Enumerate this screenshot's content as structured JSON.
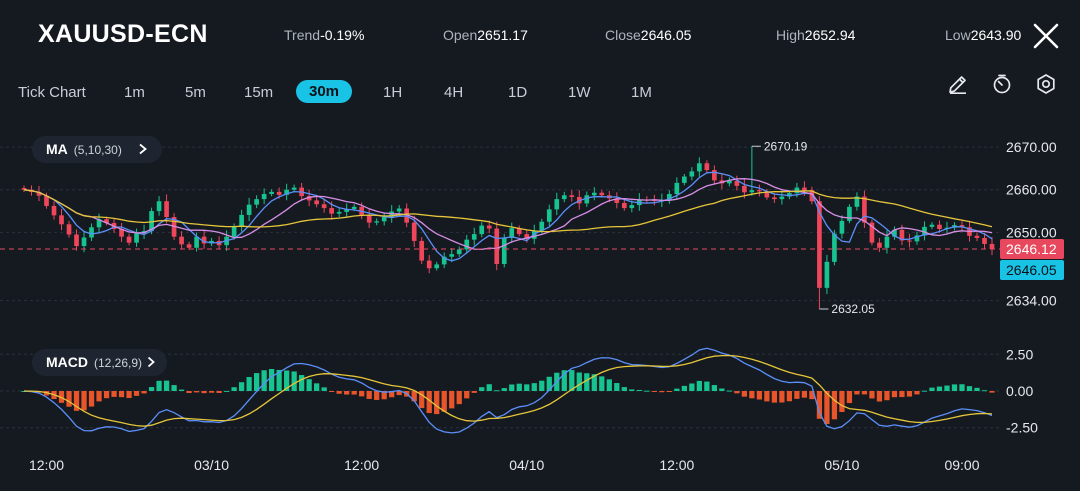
{
  "header": {
    "symbol": "XAUUSD-ECN",
    "trend_label": "Trend",
    "trend_value": "-0.19%",
    "open_label": "Open",
    "open_value": "2651.17",
    "close_label": "Close",
    "close_value": "2646.05",
    "high_label": "High",
    "high_value": "2652.94",
    "low_label": "Low",
    "low_value": "2643.90"
  },
  "timeframes": [
    "Tick Chart",
    "1m",
    "5m",
    "15m",
    "30m",
    "1H",
    "4H",
    "1D",
    "1W",
    "1M"
  ],
  "active_timeframe": "30m",
  "toolbar_icons": [
    "pencil-icon",
    "timer-icon",
    "settings-icon"
  ],
  "ma_indicator": {
    "name": "MA",
    "params": "(5,10,30)"
  },
  "macd_indicator": {
    "name": "MACD",
    "params": "(12,26,9)"
  },
  "colors": {
    "background": "#151a21",
    "bull": "#17c48f",
    "bear": "#f0465b",
    "histogram_negative": "#e8552a",
    "ma5": "#5b8ff9",
    "ma10": "#d78ee6",
    "ma30": "#e5c53a",
    "price_tag": "#e8485e",
    "close_tag": "#19c3e6"
  },
  "chart_data": {
    "type": "candlestick",
    "price_axis": {
      "ylim": [
        2629,
        2674
      ],
      "ticks": [
        "2670.00",
        "2660.00",
        "2650.00",
        "2634.00"
      ],
      "tick_values": [
        2670,
        2660,
        2650,
        2634
      ]
    },
    "markers": {
      "high_label": "2670.19",
      "high_value": 2670.19,
      "low_label": "2632.05",
      "low_value": 2632.05
    },
    "price_tags": {
      "last_label": "2646.12",
      "last_value": 2646.12,
      "close_label": "2646.05",
      "close_value": 2646.05
    },
    "time_labels": [
      "12:00",
      "03/10",
      "12:00",
      "04/10",
      "12:00",
      "05/10",
      "09:00"
    ],
    "time_label_index": [
      3,
      25,
      45,
      67,
      87,
      109,
      125
    ],
    "closes": [
      2660.0,
      2659.5,
      2658.6,
      2656.2,
      2654.0,
      2651.9,
      2649.5,
      2646.8,
      2648.8,
      2651.2,
      2653.1,
      2652.2,
      2650.8,
      2649.0,
      2647.6,
      2649.8,
      2650.3,
      2655.0,
      2657.3,
      2653.6,
      2649.0,
      2647.2,
      2646.4,
      2649.0,
      2647.4,
      2648.0,
      2647.0,
      2649.0,
      2651.3,
      2654.1,
      2656.5,
      2657.8,
      2659.0,
      2659.5,
      2658.8,
      2660.0,
      2660.5,
      2658.5,
      2657.5,
      2656.6,
      2655.7,
      2654.4,
      2654.8,
      2655.5,
      2656.0,
      2654.0,
      2652.3,
      2652.6,
      2653.6,
      2654.9,
      2655.6,
      2652.3,
      2648.0,
      2643.4,
      2641.6,
      2642.5,
      2644.3,
      2644.9,
      2646.0,
      2648.3,
      2649.6,
      2651.6,
      2650.9,
      2642.6,
      2648.7,
      2651.0,
      2649.6,
      2648.5,
      2650.4,
      2652.5,
      2655.4,
      2657.8,
      2658.7,
      2658.3,
      2656.8,
      2658.7,
      2659.3,
      2658.7,
      2658.0,
      2656.9,
      2655.7,
      2656.4,
      2657.7,
      2657.6,
      2657.4,
      2657.5,
      2659.0,
      2661.6,
      2663.1,
      2664.3,
      2666.2,
      2664.6,
      2662.2,
      2661.5,
      2662.1,
      2660.9,
      2659.4,
      2659.9,
      2659.6,
      2658.2,
      2657.8,
      2658.4,
      2659.2,
      2660.5,
      2659.9,
      2657.3,
      2637.0,
      2643.1,
      2649.7,
      2652.7,
      2656.0,
      2658.4,
      2652.3,
      2647.6,
      2646.4,
      2649.0,
      2650.6,
      2648.1,
      2647.9,
      2649.3,
      2651.3,
      2651.8,
      2650.8,
      2651.1,
      2651.7,
      2651.2,
      2649.2,
      2648.7,
      2647.3,
      2646.1
    ],
    "ma_periods": [
      5,
      10,
      30
    ],
    "macd_axis": {
      "ylim": [
        -3.2,
        3.2
      ],
      "ticks": [
        "2.50",
        "0.00",
        "-2.50"
      ],
      "tick_values": [
        2.5,
        0,
        -2.5
      ]
    }
  }
}
